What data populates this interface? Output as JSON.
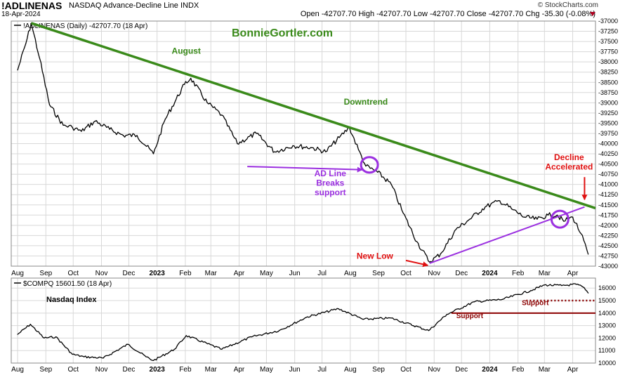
{
  "header": {
    "ticker": "!ADLINENAS",
    "name": "NASDAQ Advance-Decline Line  INDX",
    "date": "18-Apr-2024",
    "ohlc": "Open -42707.70  High -42707.70  Low -42707.70  Close -42707.70  Chg -35.30 (-0.08%)",
    "source": "© StockCharts.com"
  },
  "watermark": "BonnieGortler.com",
  "colors": {
    "trend": "#3a8a1a",
    "annotation_purple": "#9b30e0",
    "annotation_red": "#e01010",
    "support": "#8b0000",
    "price": "#000000",
    "grid": "#d8d8d8"
  },
  "chart_data": [
    {
      "type": "line",
      "panel_label": "!ADLINENAS (Daily) -42707.70 (18 Apr)",
      "x": [
        "2022-08-01",
        "2022-08-10",
        "2022-08-16",
        "2022-08-25",
        "2022-09-05",
        "2022-09-20",
        "2022-09-30",
        "2022-10-10",
        "2022-10-25",
        "2022-11-10",
        "2022-11-25",
        "2022-12-10",
        "2022-12-28",
        "2023-01-10",
        "2023-01-31",
        "2023-02-07",
        "2023-02-25",
        "2023-03-13",
        "2023-03-30",
        "2023-04-20",
        "2023-05-10",
        "2023-05-30",
        "2023-06-20",
        "2023-07-05",
        "2023-07-20",
        "2023-07-31",
        "2023-08-10",
        "2023-08-18",
        "2023-08-31",
        "2023-09-15",
        "2023-09-28",
        "2023-10-13",
        "2023-10-27",
        "2023-11-08",
        "2023-11-25",
        "2023-12-10",
        "2023-12-27",
        "2024-01-12",
        "2024-01-25",
        "2024-02-08",
        "2024-02-22",
        "2024-03-05",
        "2024-03-15",
        "2024-03-22",
        "2024-04-01",
        "2024-04-10",
        "2024-04-18"
      ],
      "values": [
        -38200,
        -37550,
        -37050,
        -37900,
        -39050,
        -39550,
        -39600,
        -39700,
        -39450,
        -39650,
        -39800,
        -39800,
        -40250,
        -39400,
        -38550,
        -38400,
        -39000,
        -39300,
        -40000,
        -39750,
        -40200,
        -40050,
        -40100,
        -40200,
        -39850,
        -39600,
        -40150,
        -40550,
        -40700,
        -41000,
        -41700,
        -42400,
        -42900,
        -42700,
        -42100,
        -41850,
        -41550,
        -41400,
        -41600,
        -41800,
        -41850,
        -41750,
        -41750,
        -41900,
        -41800,
        -42200,
        -42707.7
      ],
      "ylim": [
        -43000,
        -37000
      ],
      "yticks": [
        -37000,
        -37250,
        -37500,
        -37750,
        -38000,
        -38250,
        -38500,
        -38750,
        -39000,
        -39250,
        -39500,
        -39750,
        -40000,
        -40250,
        -40500,
        -40750,
        -41000,
        -41250,
        -41500,
        -41750,
        -42000,
        -42250,
        -42500,
        -42750,
        -43000
      ],
      "xticks": [
        "Aug",
        "Sep",
        "Oct",
        "Nov",
        "Dec",
        "2023",
        "Feb",
        "Mar",
        "Apr",
        "May",
        "Jun",
        "Jul",
        "Aug",
        "Sep",
        "Oct",
        "Nov",
        "Dec",
        "2024",
        "Feb",
        "Mar",
        "Apr"
      ],
      "xtick_dates": [
        "2022-08-01",
        "2022-09-01",
        "2022-10-01",
        "2022-11-01",
        "2022-12-01",
        "2023-01-01",
        "2023-02-01",
        "2023-03-01",
        "2023-04-01",
        "2023-05-01",
        "2023-06-01",
        "2023-07-01",
        "2023-08-01",
        "2023-09-01",
        "2023-10-01",
        "2023-11-01",
        "2023-12-01",
        "2024-01-01",
        "2024-02-01",
        "2024-03-01",
        "2024-04-01"
      ],
      "grid": true,
      "annotations": [
        {
          "text": "August",
          "color": "#3a8a1a",
          "x": "2023-02-02",
          "y": -37800
        },
        {
          "text": "Downtrend",
          "color": "#3a8a1a",
          "x": "2023-08-18",
          "y": -39050
        },
        {
          "text": "AD Line",
          "color": "#9b30e0",
          "x": "2023-07-10",
          "y": -40800
        },
        {
          "text": "Breaks",
          "color": "#9b30e0",
          "x": "2023-07-10",
          "y": -41030
        },
        {
          "text": "support",
          "color": "#9b30e0",
          "x": "2023-07-10",
          "y": -41260
        },
        {
          "text": "Decline",
          "color": "#e01010",
          "x": "2024-03-28",
          "y": -40400
        },
        {
          "text": "Accelerated",
          "color": "#e01010",
          "x": "2024-03-28",
          "y": -40640
        },
        {
          "text": "New Low",
          "color": "#e01010",
          "x": "2023-08-28",
          "y": -42820
        }
      ]
    },
    {
      "type": "line",
      "panel_label": "$COMPQ 15601.50 (18 Apr)",
      "title": "Nasdaq Index",
      "x": [
        "2022-08-01",
        "2022-08-15",
        "2022-08-30",
        "2022-09-12",
        "2022-09-30",
        "2022-10-13",
        "2022-11-03",
        "2022-11-30",
        "2022-12-20",
        "2022-12-28",
        "2023-01-20",
        "2023-02-02",
        "2023-03-13",
        "2023-04-15",
        "2023-05-15",
        "2023-06-15",
        "2023-07-19",
        "2023-08-15",
        "2023-09-15",
        "2023-10-26",
        "2023-11-15",
        "2023-12-15",
        "2024-01-15",
        "2024-02-15",
        "2024-03-01",
        "2024-03-20",
        "2024-04-05",
        "2024-04-12",
        "2024-04-18"
      ],
      "values": [
        12300,
        13100,
        12000,
        12100,
        10700,
        10500,
        10400,
        11500,
        10500,
        10200,
        11100,
        12200,
        11100,
        12100,
        12600,
        13700,
        14350,
        13500,
        13600,
        12600,
        13900,
        14900,
        15100,
        15800,
        16250,
        16200,
        16300,
        16100,
        15601.5
      ],
      "ylim": [
        10000,
        16800
      ],
      "yticks": [
        10000,
        11000,
        12000,
        13000,
        14000,
        15000,
        16000
      ],
      "grid": true,
      "annotations": [
        {
          "text": "Support",
          "color": "#8b0000",
          "x": "2024-02-20",
          "y": 14650
        },
        {
          "text": "Support",
          "color": "#8b0000",
          "x": "2023-12-10",
          "y": 13600
        }
      ]
    }
  ]
}
